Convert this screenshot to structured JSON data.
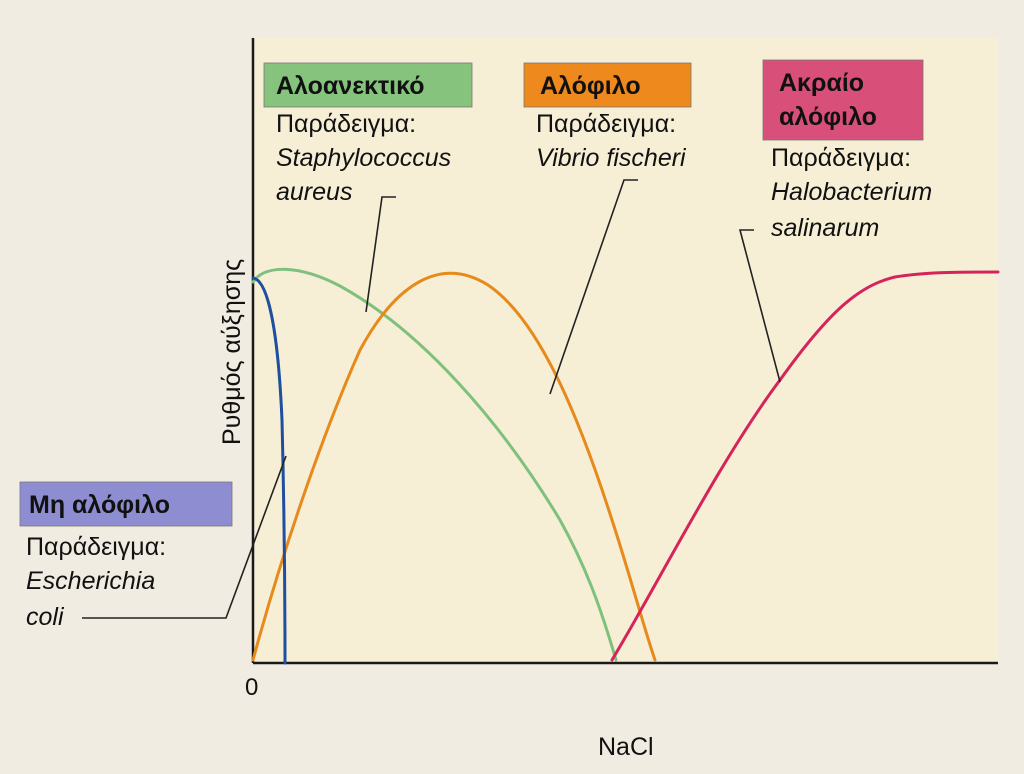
{
  "chart_data": {
    "type": "line",
    "xlabel": "NaCl",
    "ylabel": "Ρυθμός αύξησης",
    "x_tick_labels": [
      "0"
    ],
    "grid": false,
    "colors": {
      "non_halophile": "#1f4fa0",
      "halotolerant": "#7ec07e",
      "halophile": "#e68a1c",
      "extreme_halophile": "#d4245a"
    },
    "series": [
      {
        "key": "non_halophile",
        "name": "Μη αλόφιλο",
        "example_label": "Παράδειγμα:",
        "example_lines": [
          "Escherichia",
          "coli"
        ],
        "badge_color": "#8e8dd2"
      },
      {
        "key": "halotolerant",
        "name": "Αλοανεκτικό",
        "example_label": "Παράδειγμα:",
        "example_lines": [
          "Staphylococcus",
          "aureus"
        ],
        "badge_color": "#86c47e"
      },
      {
        "key": "halophile",
        "name": "Αλόφιλο",
        "example_label": "Παράδειγμα:",
        "example_lines": [
          "Vibrio fischeri"
        ],
        "badge_color": "#ee8a1d"
      },
      {
        "key": "extreme_halophile",
        "name_lines": [
          "Ακραίο",
          "αλόφιλο"
        ],
        "example_label": "Παράδειγμα:",
        "example_lines": [
          "Halobacterium",
          "salinarum"
        ],
        "badge_color": "#d8507a"
      }
    ]
  }
}
